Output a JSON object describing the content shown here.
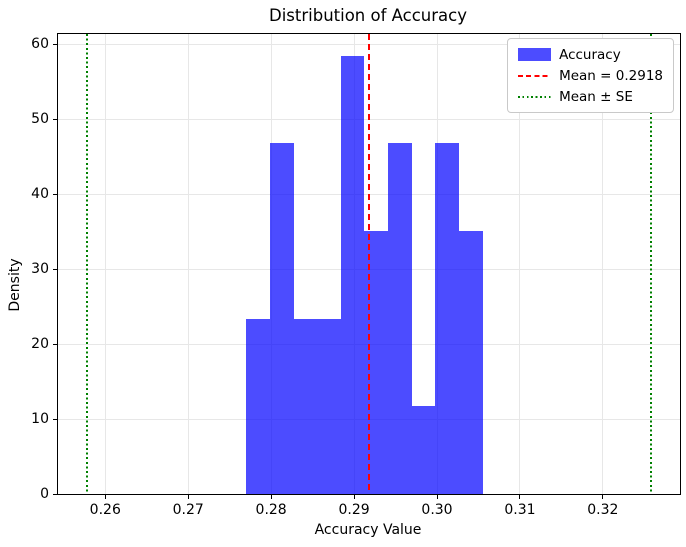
{
  "title": "Distribution of Accuracy",
  "axes": {
    "xlabel": "Accuracy Value",
    "ylabel": "Density",
    "x_tick_labels": [
      "0.26",
      "0.27",
      "0.28",
      "0.29",
      "0.30",
      "0.31",
      "0.32"
    ],
    "x_tick_values": [
      0.26,
      0.27,
      0.28,
      0.29,
      0.3,
      0.31,
      0.32
    ],
    "y_tick_labels": [
      "0",
      "10",
      "20",
      "30",
      "40",
      "50",
      "60"
    ],
    "y_tick_values": [
      0,
      10,
      20,
      30,
      40,
      50,
      60
    ]
  },
  "legend": {
    "items": [
      {
        "label": "Accuracy",
        "marker": "patch",
        "color": "rgba(0,0,255,0.7)"
      },
      {
        "label": "Mean = 0.2918",
        "marker": "dashed-line",
        "color": "#ff0000"
      },
      {
        "label": "Mean ± SE",
        "marker": "dotted-line",
        "color": "#008000"
      }
    ]
  },
  "chart_data": {
    "type": "bar",
    "variant": "histogram",
    "title": "Distribution of Accuracy",
    "xlabel": "Accuracy Value",
    "ylabel": "Density",
    "bin_edges": [
      0.277,
      0.27985,
      0.2827,
      0.28555,
      0.2884,
      0.29125,
      0.2941,
      0.29695,
      0.2998,
      0.30265,
      0.3055
    ],
    "densities": [
      23.4,
      46.8,
      23.4,
      23.4,
      58.5,
      35.1,
      46.8,
      11.7,
      46.8,
      35.1
    ],
    "mean": 0.2918,
    "mean_line": 0.2918,
    "se_lines": [
      0.2578,
      0.3258
    ],
    "xlim": [
      0.2543,
      0.3293
    ],
    "ylim": [
      0,
      61.4
    ],
    "grid": true,
    "legend_position": "upper right",
    "bar_color": "rgba(0,0,255,0.7)",
    "mean_line_color": "#ff0000",
    "se_line_color": "#008000",
    "grid_color": "#e7e7e7"
  }
}
